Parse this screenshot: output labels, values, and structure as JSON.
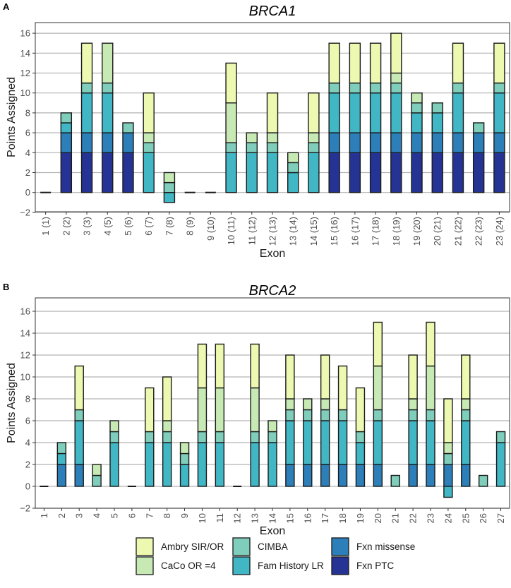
{
  "colors": {
    "Ambry SIR/OR": "#edf8b1",
    "CaCo OR =4": "#c7e9b4",
    "CIMBA": "#7fcdbb",
    "Fam History LR": "#41b6c4",
    "Fxn missense": "#2c7fb8",
    "Fxn PTC": "#253494"
  },
  "legend": {
    "entries": [
      "Ambry SIR/OR",
      "CaCo OR =4",
      "CIMBA",
      "Fam History LR",
      "Fxn missense",
      "Fxn PTC"
    ],
    "placement": "bottom"
  },
  "chart_data": [
    {
      "panel_label": "A",
      "type": "bar",
      "stacked": true,
      "title": "BRCA1",
      "xlabel": "Exon",
      "ylabel": "Points Assigned",
      "ylim": [
        -2,
        17
      ],
      "yticks": [
        -2,
        0,
        2,
        4,
        6,
        8,
        10,
        12,
        14,
        16
      ],
      "grid": true,
      "categories": [
        "1 (1)",
        "2 (2)",
        "3 (3)",
        "4 (5)",
        "5 (6)",
        "6 (7)",
        "7 (8)",
        "8 (9)",
        "9 (10)",
        "10 (11)",
        "11 (12)",
        "12 (13)",
        "13 (14)",
        "14 (15)",
        "15 (16)",
        "16 (17)",
        "17 (18)",
        "18 (19)",
        "19 (20)",
        "20 (21)",
        "21 (22)",
        "22 (23)",
        "23 (24)"
      ],
      "series": [
        {
          "name": "Fxn PTC",
          "values": [
            0,
            4,
            4,
            4,
            4,
            0,
            0,
            0,
            0,
            0,
            0,
            0,
            0,
            0,
            4,
            4,
            4,
            4,
            4,
            4,
            4,
            4,
            4
          ]
        },
        {
          "name": "Fxn missense",
          "values": [
            0,
            2,
            2,
            2,
            2,
            0,
            0,
            0,
            0,
            0,
            0,
            0,
            0,
            0,
            2,
            2,
            2,
            2,
            2,
            2,
            2,
            2,
            2
          ]
        },
        {
          "name": "Fam History LR",
          "values": [
            0,
            1,
            4,
            4,
            0,
            4,
            -1,
            0,
            0,
            4,
            4,
            4,
            2,
            4,
            4,
            4,
            4,
            4,
            2,
            2,
            4,
            0,
            4
          ]
        },
        {
          "name": "CIMBA",
          "values": [
            0,
            1,
            1,
            1,
            1,
            1,
            1,
            0,
            0,
            1,
            1,
            1,
            1,
            1,
            1,
            1,
            1,
            1,
            1,
            1,
            1,
            1,
            1
          ]
        },
        {
          "name": "CaCo OR =4",
          "values": [
            0,
            0,
            0,
            4,
            0,
            1,
            1,
            0,
            0,
            4,
            1,
            1,
            1,
            1,
            0,
            0,
            0,
            1,
            1,
            0,
            0,
            0,
            0
          ]
        },
        {
          "name": "Ambry SIR/OR",
          "values": [
            0,
            0,
            4,
            0,
            0,
            4,
            0,
            0,
            0,
            4,
            0,
            4,
            0,
            4,
            4,
            4,
            4,
            4,
            0,
            0,
            4,
            0,
            4
          ]
        }
      ]
    },
    {
      "panel_label": "B",
      "type": "bar",
      "stacked": true,
      "title": "BRCA2",
      "xlabel": "Exon",
      "ylabel": "Points Assigned",
      "ylim": [
        -2,
        17
      ],
      "yticks": [
        -2,
        0,
        2,
        4,
        6,
        8,
        10,
        12,
        14,
        16
      ],
      "grid": true,
      "categories": [
        "1",
        "2",
        "3",
        "4",
        "5",
        "6",
        "7",
        "8",
        "9",
        "10",
        "11",
        "12",
        "13",
        "14",
        "15",
        "16",
        "17",
        "18",
        "19",
        "20",
        "21",
        "22",
        "23",
        "24",
        "25",
        "26",
        "27"
      ],
      "series": [
        {
          "name": "Fxn PTC",
          "values": [
            0,
            0,
            0,
            0,
            0,
            0,
            0,
            0,
            0,
            0,
            0,
            0,
            0,
            0,
            0,
            0,
            0,
            0,
            0,
            0,
            0,
            0,
            0,
            0,
            0,
            0,
            0
          ]
        },
        {
          "name": "Fxn missense",
          "values": [
            0,
            2,
            2,
            0,
            0,
            0,
            0,
            0,
            0,
            0,
            0,
            0,
            0,
            0,
            2,
            2,
            2,
            2,
            2,
            2,
            0,
            2,
            2,
            2,
            2,
            0,
            0
          ]
        },
        {
          "name": "Fam History LR",
          "values": [
            0,
            1,
            4,
            0,
            4,
            0,
            4,
            4,
            2,
            4,
            4,
            0,
            4,
            4,
            4,
            4,
            4,
            4,
            2,
            4,
            0,
            4,
            4,
            -1,
            4,
            0,
            4
          ]
        },
        {
          "name": "CIMBA",
          "values": [
            0,
            1,
            1,
            1,
            1,
            0,
            1,
            1,
            1,
            1,
            1,
            0,
            1,
            1,
            1,
            1,
            1,
            1,
            1,
            1,
            1,
            1,
            1,
            1,
            1,
            1,
            1
          ]
        },
        {
          "name": "CaCo OR =4",
          "values": [
            0,
            0,
            0,
            1,
            1,
            0,
            0,
            1,
            1,
            4,
            4,
            0,
            4,
            1,
            1,
            1,
            1,
            0,
            0,
            4,
            0,
            1,
            4,
            1,
            1,
            0,
            0
          ]
        },
        {
          "name": "Ambry SIR/OR",
          "values": [
            0,
            0,
            4,
            0,
            0,
            0,
            4,
            4,
            0,
            4,
            4,
            0,
            4,
            0,
            4,
            0,
            4,
            4,
            4,
            4,
            0,
            4,
            4,
            4,
            4,
            0,
            0
          ]
        }
      ]
    }
  ]
}
